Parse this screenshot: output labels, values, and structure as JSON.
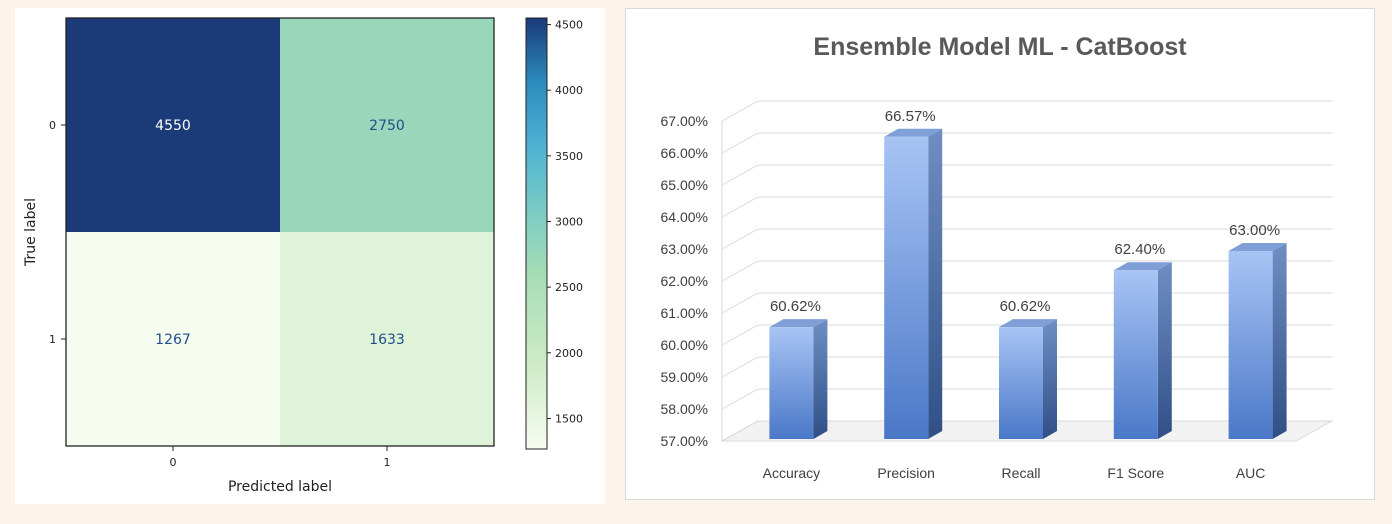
{
  "chart_data": [
    {
      "type": "heatmap",
      "title": "",
      "xlabel": "Predicted label",
      "ylabel": "True label",
      "x_tick_labels": [
        "0",
        "1"
      ],
      "y_tick_labels": [
        "0",
        "1"
      ],
      "matrix": [
        [
          4550,
          2750
        ],
        [
          1267,
          1633
        ]
      ],
      "colormap": "GnBu",
      "colorbar": {
        "range": [
          1267,
          4550
        ],
        "ticks": [
          1500,
          2000,
          2500,
          3000,
          3500,
          4000,
          4500
        ]
      },
      "text_colors": {
        "dark_cell": "#ffffff",
        "light_cell": "#1f4e8c"
      }
    },
    {
      "type": "bar",
      "title": "Ensemble Model ML - CatBoost",
      "categories": [
        "Accuracy",
        "Precision",
        "Recall",
        "F1 Score",
        "AUC"
      ],
      "values": [
        60.62,
        66.57,
        60.62,
        62.4,
        63.0
      ],
      "value_labels": [
        "60.62%",
        "66.57%",
        "60.62%",
        "62.40%",
        "63.00%"
      ],
      "ylim": [
        57,
        67
      ],
      "y_ticks": [
        "57.00%",
        "58.00%",
        "59.00%",
        "60.00%",
        "61.00%",
        "62.00%",
        "63.00%",
        "64.00%",
        "65.00%",
        "66.00%",
        "67.00%"
      ],
      "xlabel": "",
      "ylabel": "",
      "grid": true,
      "style": "3d-column",
      "bar_color": "#5b86cf"
    }
  ]
}
